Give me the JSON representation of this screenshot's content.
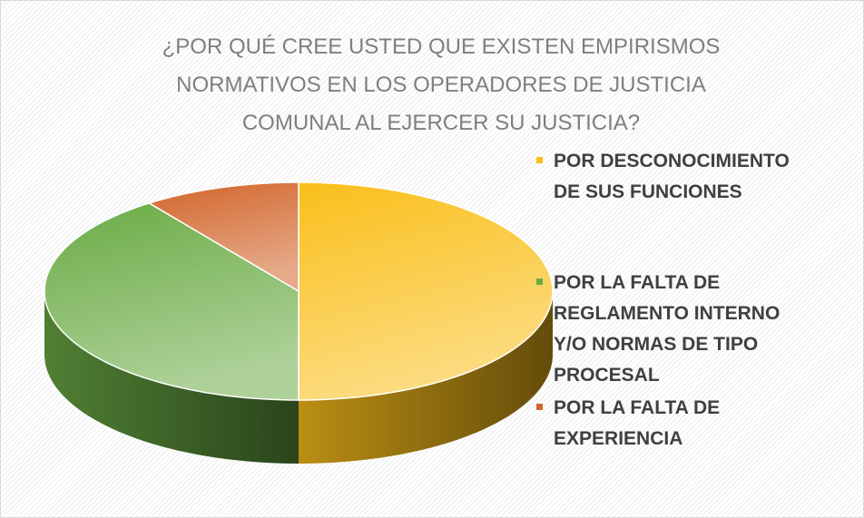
{
  "chart_data": {
    "type": "pie",
    "title": "¿POR QUÉ CREE USTED QUE EXISTEN EMPIRISMOS NORMATIVOS EN LOS OPERADORES DE JUSTICIA COMUNAL AL EJERCER SU JUSTICIA?",
    "categories": [
      "POR DESCONOCIMIENTO DE SUS FUNCIONES",
      "POR LA FALTA DE REGLAMENTO INTERNO Y/O NORMAS DE TIPO PROCESAL",
      "POR LA  FALTA DE EXPERIENCIA"
    ],
    "values": [
      50,
      40,
      10
    ],
    "colors": [
      "#f9bf1a",
      "#6aab44",
      "#d2652a"
    ],
    "legend": "right"
  }
}
